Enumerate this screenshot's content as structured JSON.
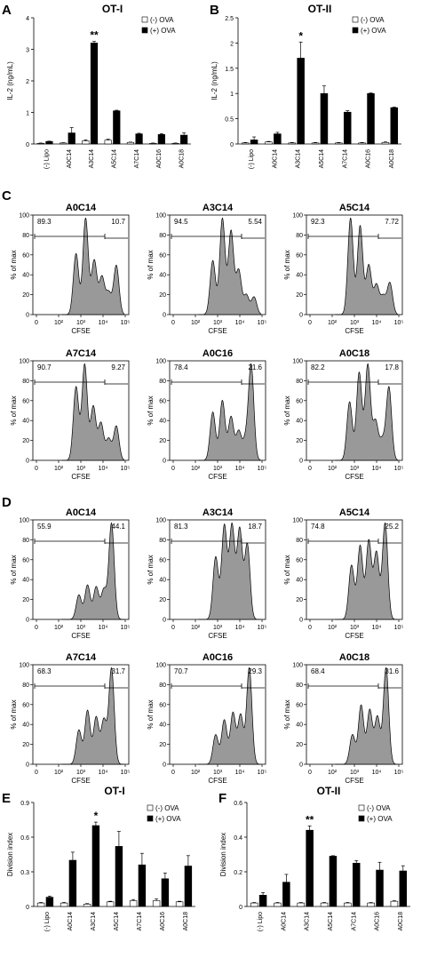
{
  "panels": {
    "A": "A",
    "B": "B",
    "C": "C",
    "D": "D",
    "E": "E",
    "F": "F"
  },
  "legend": {
    "minus": "(-) OVA",
    "plus": "(+) OVA"
  },
  "colors": {
    "minus": "#ffffff",
    "plus": "#000000",
    "histogram_fill": "#999999",
    "axis": "#000000"
  },
  "chart_data": [
    {
      "id": "A",
      "type": "bar",
      "title": "OT-I",
      "ylabel": "IL-2 (ng/mL)",
      "xlabel": "",
      "categories": [
        "(-) Lipo",
        "A0C14",
        "A3C14",
        "A5C14",
        "A7C14",
        "A0C16",
        "A0C18"
      ],
      "series": [
        {
          "name": "(-) OVA",
          "values": [
            0.02,
            0.03,
            0.1,
            0.12,
            0.05,
            0.02,
            0.02
          ],
          "errors": [
            0.01,
            0.01,
            0.03,
            0.03,
            0.01,
            0.01,
            0.01
          ]
        },
        {
          "name": "(+) OVA",
          "values": [
            0.08,
            0.35,
            3.2,
            1.05,
            0.32,
            0.3,
            0.28
          ],
          "errors": [
            0.01,
            0.17,
            0.05,
            0.02,
            0.02,
            0.03,
            0.07
          ]
        }
      ],
      "ylim": [
        0,
        4
      ],
      "yticks": [
        "0",
        "1",
        "2",
        "3",
        "4"
      ],
      "annotations": [
        {
          "category": "A3C14",
          "text": "**"
        }
      ],
      "legend_position": "top-right"
    },
    {
      "id": "B",
      "type": "bar",
      "title": "OT-II",
      "ylabel": "IL-2 (ng/mL)",
      "xlabel": "",
      "categories": [
        "(-) Lipo",
        "A0C14",
        "A3C14",
        "A5C14",
        "A7C14",
        "A0C16",
        "A0C18"
      ],
      "series": [
        {
          "name": "(-) OVA",
          "values": [
            0.02,
            0.04,
            0.02,
            0.02,
            0.02,
            0.02,
            0.03
          ],
          "errors": [
            0.01,
            0.01,
            0.01,
            0.01,
            0.01,
            0.01,
            0.01
          ]
        },
        {
          "name": "(+) OVA",
          "values": [
            0.08,
            0.2,
            1.7,
            1.0,
            0.63,
            1.0,
            0.72
          ],
          "errors": [
            0.06,
            0.03,
            0.32,
            0.15,
            0.03,
            0.01,
            0.01
          ]
        }
      ],
      "ylim": [
        0,
        2.5
      ],
      "yticks": [
        "0",
        "0.5",
        "1",
        "1.5",
        "2",
        "2.5"
      ],
      "annotations": [
        {
          "category": "A3C14",
          "text": "*"
        }
      ],
      "legend_position": "top-right"
    },
    {
      "id": "C",
      "type": "histogram_grid",
      "xlabel": "CFSE",
      "ylabel": "% of max",
      "yticks": [
        "0",
        "20",
        "40",
        "60",
        "80",
        "100"
      ],
      "xticks": [
        "0",
        "10²",
        "10³",
        "10⁴",
        "10⁵"
      ],
      "plots": [
        {
          "title": "A0C14",
          "left": "89.3",
          "right": "10.7",
          "peaks": [
            [
              0.45,
              0.62
            ],
            [
              0.55,
              0.98
            ],
            [
              0.64,
              0.55
            ],
            [
              0.72,
              0.38
            ],
            [
              0.79,
              0.22
            ],
            [
              0.87,
              0.5
            ]
          ]
        },
        {
          "title": "A3C14",
          "left": "94.5",
          "right": "5.54",
          "peaks": [
            [
              0.45,
              0.55
            ],
            [
              0.55,
              0.98
            ],
            [
              0.64,
              0.85
            ],
            [
              0.72,
              0.45
            ],
            [
              0.8,
              0.2
            ],
            [
              0.88,
              0.18
            ]
          ]
        },
        {
          "title": "A5C14",
          "left": "92.3",
          "right": "7.72",
          "peaks": [
            [
              0.46,
              0.98
            ],
            [
              0.56,
              0.9
            ],
            [
              0.65,
              0.5
            ],
            [
              0.73,
              0.3
            ],
            [
              0.8,
              0.18
            ],
            [
              0.87,
              0.32
            ]
          ]
        },
        {
          "title": "A7C14",
          "left": "90.7",
          "right": "9.27",
          "peaks": [
            [
              0.45,
              0.75
            ],
            [
              0.54,
              0.98
            ],
            [
              0.63,
              0.55
            ],
            [
              0.71,
              0.38
            ],
            [
              0.79,
              0.22
            ],
            [
              0.87,
              0.35
            ]
          ]
        },
        {
          "title": "A0C16",
          "left": "78.4",
          "right": "21.6",
          "peaks": [
            [
              0.45,
              0.5
            ],
            [
              0.55,
              0.62
            ],
            [
              0.64,
              0.45
            ],
            [
              0.72,
              0.3
            ],
            [
              0.79,
              0.2
            ],
            [
              0.85,
              0.98
            ]
          ]
        },
        {
          "title": "A0C18",
          "left": "82.2",
          "right": "17.8",
          "peaks": [
            [
              0.45,
              0.6
            ],
            [
              0.55,
              0.9
            ],
            [
              0.64,
              0.98
            ],
            [
              0.72,
              0.4
            ],
            [
              0.79,
              0.2
            ],
            [
              0.86,
              0.75
            ]
          ]
        }
      ]
    },
    {
      "id": "D",
      "type": "histogram_grid",
      "xlabel": "CFSE",
      "ylabel": "% of max",
      "yticks": [
        "0",
        "20",
        "40",
        "60",
        "80",
        "100"
      ],
      "xticks": [
        "0",
        "10²",
        "10³",
        "10⁴",
        "10⁵"
      ],
      "plots": [
        {
          "title": "A0C14",
          "left": "55.9",
          "right": "44.1",
          "peaks": [
            [
              0.48,
              0.25
            ],
            [
              0.57,
              0.35
            ],
            [
              0.66,
              0.33
            ],
            [
              0.74,
              0.3
            ],
            [
              0.82,
              0.98
            ]
          ]
        },
        {
          "title": "A3C14",
          "left": "81.3",
          "right": "18.7",
          "peaks": [
            [
              0.48,
              0.5
            ],
            [
              0.57,
              0.75
            ],
            [
              0.65,
              0.75
            ],
            [
              0.73,
              0.72
            ],
            [
              0.81,
              0.6
            ]
          ]
        },
        {
          "title": "A5C14",
          "left": "74.8",
          "right": "25.2",
          "peaks": [
            [
              0.47,
              0.55
            ],
            [
              0.56,
              0.75
            ],
            [
              0.65,
              0.8
            ],
            [
              0.73,
              0.68
            ],
            [
              0.82,
              0.98
            ]
          ]
        },
        {
          "title": "A7C14",
          "left": "68.3",
          "right": "31.7",
          "peaks": [
            [
              0.48,
              0.35
            ],
            [
              0.57,
              0.55
            ],
            [
              0.66,
              0.48
            ],
            [
              0.74,
              0.45
            ],
            [
              0.82,
              0.98
            ]
          ]
        },
        {
          "title": "A0C16",
          "left": "70.7",
          "right": "29.3",
          "peaks": [
            [
              0.48,
              0.3
            ],
            [
              0.57,
              0.45
            ],
            [
              0.66,
              0.52
            ],
            [
              0.74,
              0.5
            ],
            [
              0.83,
              0.98
            ]
          ]
        },
        {
          "title": "A0C18",
          "left": "68.4",
          "right": "31.6",
          "peaks": [
            [
              0.48,
              0.3
            ],
            [
              0.57,
              0.6
            ],
            [
              0.66,
              0.55
            ],
            [
              0.74,
              0.48
            ],
            [
              0.83,
              0.98
            ]
          ]
        }
      ]
    },
    {
      "id": "E",
      "type": "bar",
      "title": "OT-I",
      "ylabel": "Division index",
      "xlabel": "",
      "categories": [
        "(-) Lipo",
        "A0C14",
        "A3C14",
        "A5C14",
        "A7C14",
        "A0C16",
        "A0C18"
      ],
      "series": [
        {
          "name": "(-) OVA",
          "values": [
            0.03,
            0.03,
            0.02,
            0.04,
            0.05,
            0.05,
            0.04
          ],
          "errors": [
            0.005,
            0.005,
            0.005,
            0.005,
            0.01,
            0.015,
            0.005
          ]
        },
        {
          "name": "(+) OVA",
          "values": [
            0.08,
            0.4,
            0.7,
            0.52,
            0.36,
            0.24,
            0.35
          ],
          "errors": [
            0.01,
            0.07,
            0.03,
            0.13,
            0.1,
            0.05,
            0.09
          ]
        }
      ],
      "ylim": [
        0,
        0.9
      ],
      "yticks": [
        "0",
        "0.3",
        "0.6",
        "0.9"
      ],
      "annotations": [
        {
          "category": "A3C14",
          "text": "*"
        }
      ],
      "legend_position": "top-right"
    },
    {
      "id": "F",
      "type": "bar",
      "title": "OT-II",
      "ylabel": "Division index",
      "xlabel": "",
      "categories": [
        "(-) Lipo",
        "A0C14",
        "A3C14",
        "A5C14",
        "A7C14",
        "A0C16",
        "A0C18"
      ],
      "series": [
        {
          "name": "(-) OVA",
          "values": [
            0.02,
            0.02,
            0.02,
            0.02,
            0.02,
            0.02,
            0.03
          ],
          "errors": [
            0.003,
            0.003,
            0.003,
            0.003,
            0.003,
            0.003,
            0.003
          ]
        },
        {
          "name": "(+) OVA",
          "values": [
            0.065,
            0.14,
            0.44,
            0.29,
            0.25,
            0.21,
            0.205
          ],
          "errors": [
            0.015,
            0.045,
            0.025,
            0.003,
            0.015,
            0.045,
            0.03
          ]
        }
      ],
      "ylim": [
        0,
        0.6
      ],
      "yticks": [
        "0",
        "0.2",
        "0.4",
        "0.6"
      ],
      "annotations": [
        {
          "category": "A3C14",
          "text": "**"
        }
      ],
      "legend_position": "top-right"
    }
  ]
}
